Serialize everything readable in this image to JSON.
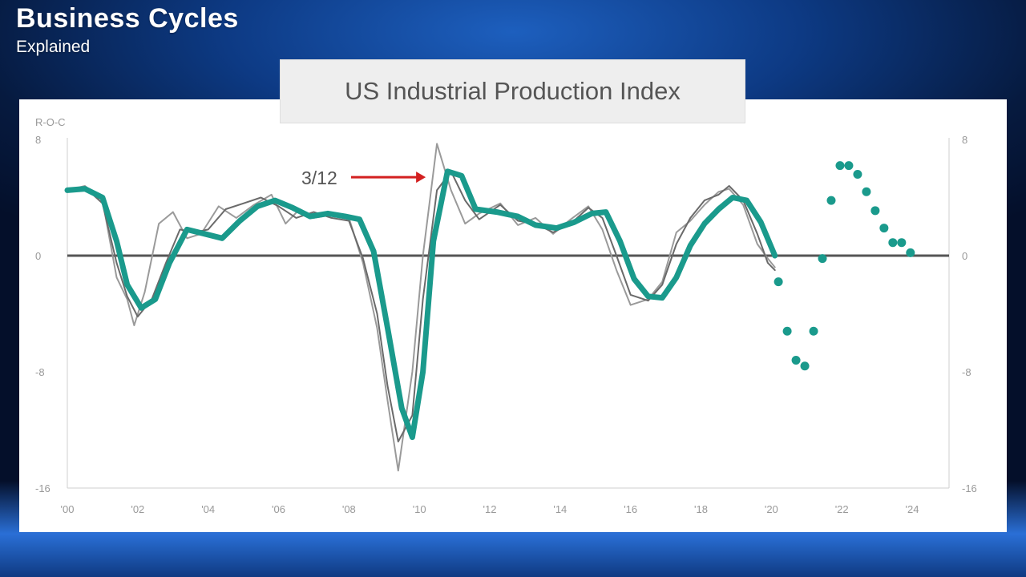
{
  "slide": {
    "title": "Business Cycles",
    "subtitle": "Explained"
  },
  "chart_data": {
    "type": "line",
    "title": "US Industrial Production Index",
    "ylabel": "R-O-C",
    "ylim": [
      -16,
      8
    ],
    "x_range": [
      2000,
      2025
    ],
    "x_tick_labels": [
      "'00",
      "'02",
      "'04",
      "'06",
      "'08",
      "'10",
      "'12",
      "'14",
      "'16",
      "'18",
      "'20",
      "'22",
      "'24"
    ],
    "y_ticks": [
      8,
      0,
      -8,
      -16
    ],
    "annotation": {
      "label": "3/12",
      "x": 2010.5,
      "y": 5.4
    },
    "colors": {
      "primary": "#1a9a8c",
      "secondary": "#888888",
      "zero_line": "#555555",
      "arrow": "#d32020"
    },
    "grid": false,
    "series": [
      {
        "style": "thin-gray",
        "x": [
          2000,
          2000.5,
          2001,
          2001.4,
          2001.7,
          2001.9,
          2002.2,
          2002.6,
          2003,
          2003.4,
          2003.8,
          2004.3,
          2004.8,
          2005.3,
          2005.8,
          2006.2,
          2006.6,
          2007,
          2007.5,
          2008,
          2008.4,
          2008.8,
          2009.1,
          2009.4,
          2009.8,
          2010.1,
          2010.5,
          2010.9,
          2011.3,
          2011.7,
          2012.3,
          2012.8,
          2013.3,
          2013.8,
          2014.3,
          2014.8,
          2015.2,
          2015.6,
          2016,
          2016.5,
          2016.9,
          2017.3,
          2017.7,
          2018.1,
          2018.5,
          2018.8,
          2019.2,
          2019.6,
          2019.9,
          2020.1
        ],
        "values": [
          4.5,
          4.8,
          3.8,
          -1.5,
          -3,
          -4.8,
          -2.5,
          2.2,
          3,
          1.2,
          1.5,
          3.4,
          2.6,
          3.5,
          4.2,
          2.2,
          3.2,
          2.6,
          2.8,
          2.6,
          -0.5,
          -5,
          -10,
          -14.8,
          -8,
          0,
          7.7,
          4.5,
          2.2,
          2.9,
          3.6,
          2.1,
          2.6,
          1.5,
          2.5,
          3.4,
          1.8,
          -1,
          -3.4,
          -3,
          -1.8,
          1.6,
          2.4,
          3.5,
          4.4,
          4.6,
          3.5,
          0.8,
          -0.2,
          -0.8
        ]
      },
      {
        "style": "thin-dark",
        "x": [
          2000,
          2000.5,
          2001,
          2001.4,
          2001.7,
          2002,
          2002.4,
          2002.8,
          2003.2,
          2003.6,
          2004,
          2004.5,
          2005,
          2005.5,
          2006,
          2006.5,
          2007,
          2007.5,
          2008,
          2008.4,
          2008.8,
          2009.1,
          2009.4,
          2009.8,
          2010.1,
          2010.5,
          2010.9,
          2011.3,
          2011.7,
          2012.3,
          2012.8,
          2013.3,
          2013.8,
          2014.3,
          2014.8,
          2015.2,
          2015.6,
          2016,
          2016.5,
          2016.9,
          2017.3,
          2017.7,
          2018.1,
          2018.5,
          2018.8,
          2019.2,
          2019.6,
          2019.9,
          2020.1
        ],
        "values": [
          4.4,
          4.7,
          3.6,
          -0.5,
          -2.8,
          -4.2,
          -3,
          -0.5,
          1.8,
          1.6,
          1.8,
          3.2,
          3.6,
          4,
          3.4,
          2.6,
          3,
          2.6,
          2.4,
          -0.2,
          -4,
          -9,
          -12.8,
          -11,
          -3,
          4.5,
          5.8,
          3.8,
          2.5,
          3.5,
          2.4,
          2.2,
          1.6,
          2.2,
          3.3,
          2.6,
          0,
          -2.7,
          -3.1,
          -2,
          0.8,
          2.6,
          3.8,
          4.2,
          4.8,
          3.8,
          1.5,
          -0.5,
          -1
        ]
      },
      {
        "style": "thick-teal",
        "x": [
          2000,
          2000.5,
          2001,
          2001.4,
          2001.7,
          2002.1,
          2002.5,
          2002.9,
          2003.4,
          2003.9,
          2004.4,
          2004.9,
          2005.4,
          2005.9,
          2006.4,
          2006.9,
          2007.4,
          2007.9,
          2008.3,
          2008.7,
          2009.1,
          2009.5,
          2009.8,
          2010.1,
          2010.4,
          2010.8,
          2011.2,
          2011.6,
          2012.2,
          2012.8,
          2013.3,
          2013.9,
          2014.4,
          2014.9,
          2015.3,
          2015.7,
          2016.1,
          2016.5,
          2016.9,
          2017.3,
          2017.7,
          2018.1,
          2018.5,
          2018.9,
          2019.3,
          2019.7,
          2020.1
        ],
        "values": [
          4.5,
          4.6,
          4,
          1,
          -2,
          -3.6,
          -3,
          -0.5,
          1.8,
          1.5,
          1.2,
          2.4,
          3.4,
          3.8,
          3.3,
          2.7,
          2.9,
          2.7,
          2.5,
          0.3,
          -5,
          -10.5,
          -12.5,
          -8,
          1,
          5.8,
          5.5,
          3.2,
          3,
          2.7,
          2.1,
          1.9,
          2.3,
          2.9,
          3,
          1,
          -1.6,
          -2.8,
          -2.9,
          -1.5,
          0.7,
          2.2,
          3.2,
          4,
          3.8,
          2.3,
          0
        ]
      },
      {
        "style": "forecast-dots",
        "x": [
          2020.2,
          2020.45,
          2020.7,
          2020.95,
          2021.2,
          2021.45,
          2021.7,
          2021.95,
          2022.2,
          2022.45,
          2022.7,
          2022.95,
          2023.2,
          2023.45,
          2023.7,
          2023.95
        ],
        "values": [
          -1.8,
          -5.2,
          -7.2,
          -7.6,
          -5.2,
          -0.2,
          3.8,
          6.2,
          6.2,
          5.6,
          4.4,
          3.1,
          1.9,
          0.9,
          0.9,
          0.2
        ]
      }
    ]
  }
}
